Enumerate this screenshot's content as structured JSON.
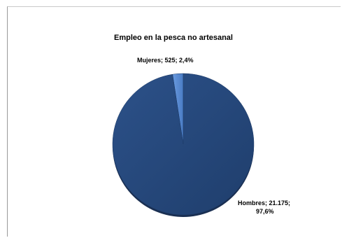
{
  "chart_data": {
    "type": "pie",
    "title": "Empleo en la pesca no artesanal",
    "slices": [
      {
        "label": "Hombres",
        "value": 21175,
        "percent": 97.6,
        "color": "#24467a",
        "data_label_line1": "Hombres; 21.175;",
        "data_label_line2": "97,6%"
      },
      {
        "label": "Mujeres",
        "value": 525,
        "percent": 2.4,
        "color": "#5b8ed6",
        "data_label_line1": "Mujeres; 525; 2,4%"
      }
    ],
    "legend": "none"
  }
}
